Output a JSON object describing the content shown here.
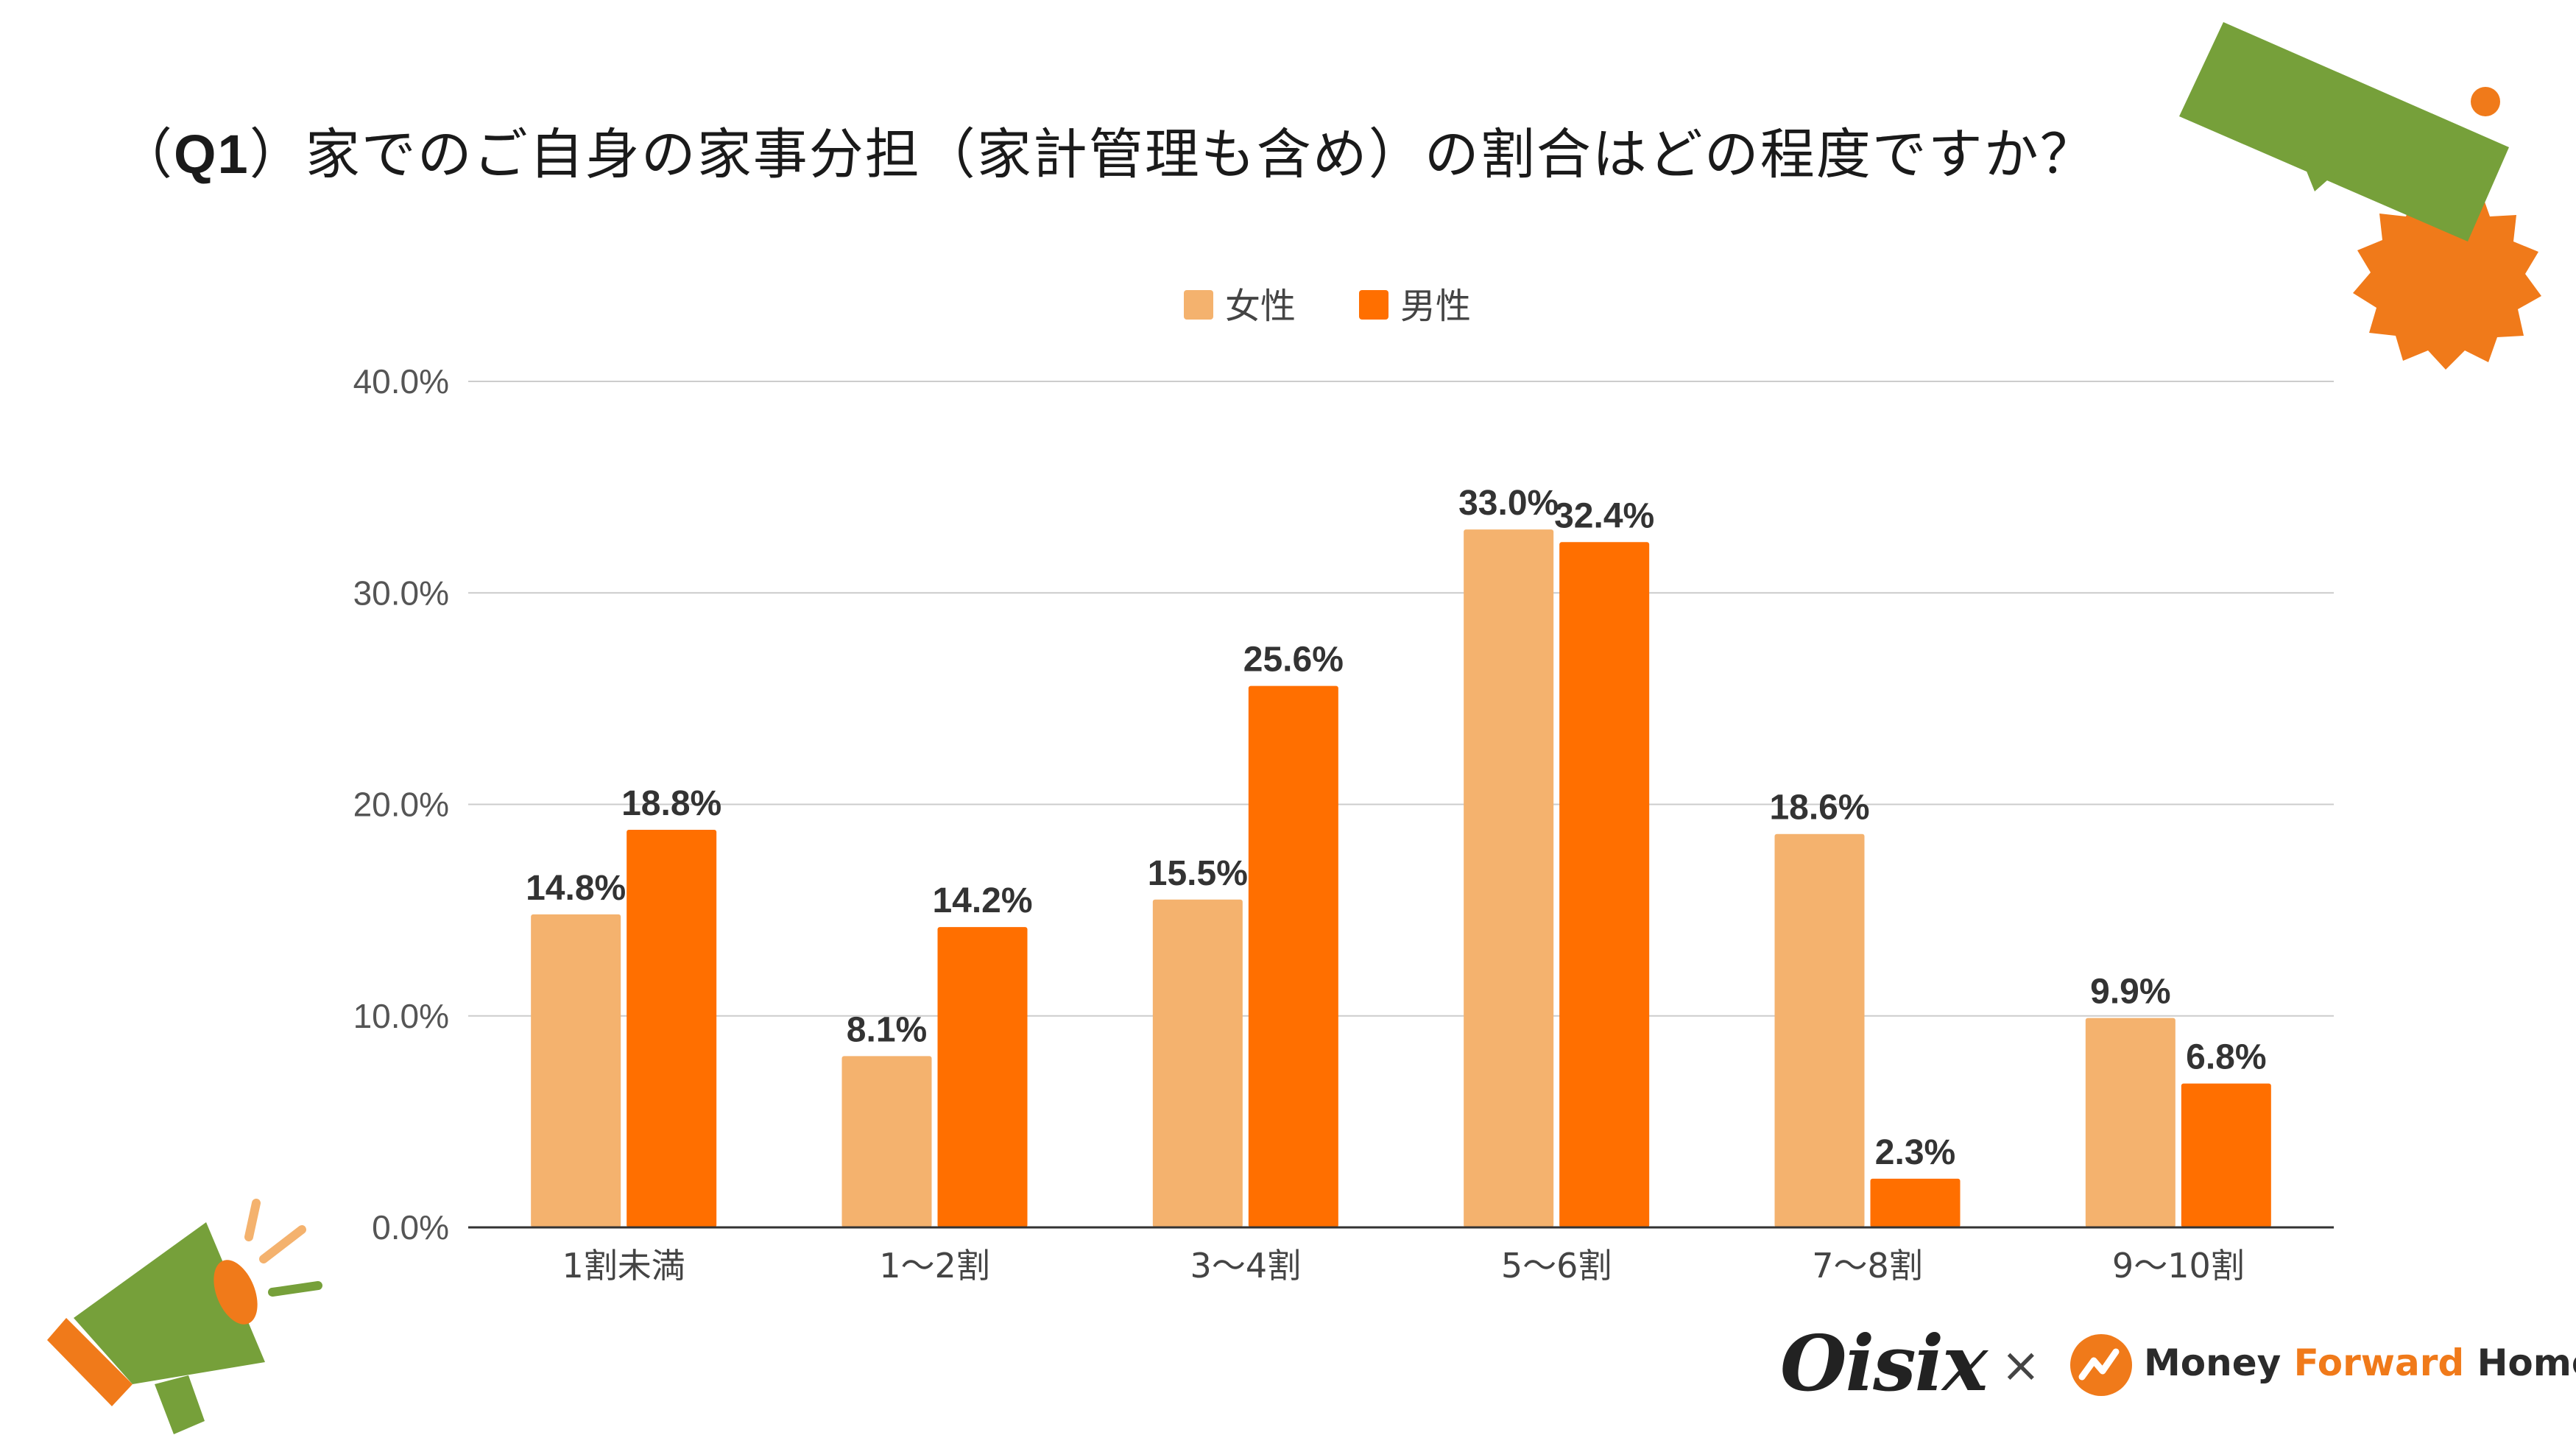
{
  "title": {
    "prefix": "（",
    "q": "Q1",
    "text": "）家でのご自身の家事分担（家計管理も含め）の割合はどの程度ですか？"
  },
  "legend": [
    {
      "label": "女性",
      "color": "#F4B26E"
    },
    {
      "label": "男性",
      "color": "#FF6F00"
    }
  ],
  "chart_data": {
    "type": "bar",
    "title": "（Q1）家でのご自身の家事分担（家計管理も含め）の割合はどの程度ですか？",
    "categories": [
      "1割未満",
      "1〜2割",
      "3〜4割",
      "5〜6割",
      "7〜8割",
      "9〜10割"
    ],
    "series": [
      {
        "name": "女性",
        "values": [
          14.8,
          8.1,
          15.5,
          33.0,
          18.6,
          9.9
        ],
        "labels": [
          "14.8%",
          "8.1%",
          "15.5%",
          "33.0%",
          "18.6%",
          "9.9%"
        ],
        "color": "#F4B26E"
      },
      {
        "name": "男性",
        "values": [
          18.8,
          14.2,
          25.6,
          32.4,
          2.3,
          6.8
        ],
        "labels": [
          "18.8%",
          "14.2%",
          "25.6%",
          "32.4%",
          "2.3%",
          "6.8%"
        ],
        "color": "#FF6F00"
      }
    ],
    "yticks": [
      0,
      10,
      20,
      30,
      40
    ],
    "ytick_labels": [
      "0.0%",
      "10.0%",
      "20.0%",
      "30.0%",
      "40.0%"
    ],
    "ylim": [
      0,
      40
    ],
    "xlabel": "",
    "ylabel": "",
    "grid": true,
    "legend_position": "top-center"
  },
  "logos": {
    "oisix": "Oisix",
    "times": "×",
    "mf_money": "Money ",
    "mf_forward": "Forward",
    "mf_home": " Home"
  },
  "colors": {
    "green": "#76A03A",
    "orange": "#F07A1A",
    "gridline": "#CCCCCC",
    "axis": "#333333"
  }
}
